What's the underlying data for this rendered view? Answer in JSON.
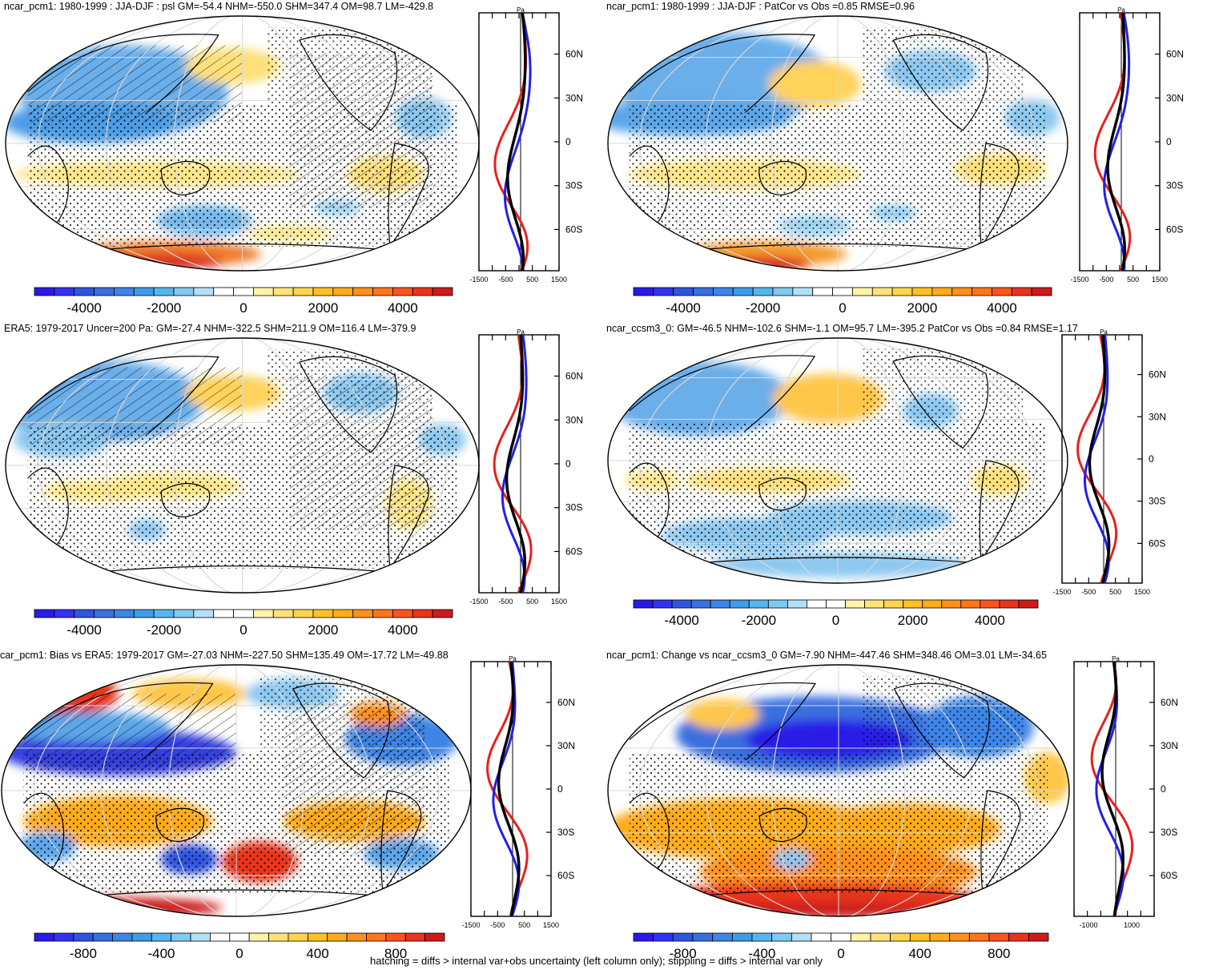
{
  "footer": "hatching = diffs > internal var+obs uncertainty (left column only); stippling = diffs > internal var only",
  "panels": [
    {
      "id": "p1",
      "title": "ncar_pcm1: 1980-1999 : JJA-DJF : psl GM=-54.4 NHM=-550.0 SHM=347.4 OM=98.7 LM=-429.8",
      "colorbar_labels": [
        "-4000",
        "-2000",
        "0",
        "2000",
        "4000"
      ],
      "profile_ticks": [
        "-1500",
        "-500",
        "500",
        "1500"
      ],
      "profile_unit": "Pa",
      "lat_labels": [
        "60N",
        "30N",
        "0",
        "30S",
        "60S"
      ]
    },
    {
      "id": "p2",
      "title": "ncar_pcm1: 1980-1999 : JJA-DJF : PatCor vs Obs =0.85 RMSE=0.96",
      "colorbar_labels": [
        "-4000",
        "-2000",
        "0",
        "2000",
        "4000"
      ],
      "profile_ticks": [
        "-1500",
        "-500",
        "500",
        "1500"
      ],
      "profile_unit": "Pa",
      "lat_labels": [
        "60N",
        "30N",
        "0",
        "30S",
        "60S"
      ]
    },
    {
      "id": "p3",
      "title": "ERA5: 1979-2017 Uncer=200 Pa: GM=-27.4 NHM=-322.5 SHM=211.9 OM=116.4 LM=-379.9",
      "colorbar_labels": [
        "-4000",
        "-2000",
        "0",
        "2000",
        "4000"
      ],
      "profile_ticks": [
        "-1500",
        "-500",
        "500",
        "1500"
      ],
      "profile_unit": "Pa",
      "lat_labels": [
        "60N",
        "30N",
        "0",
        "30S",
        "60S"
      ]
    },
    {
      "id": "p4",
      "title": "ncar_ccsm3_0: GM=-46.5 NHM=-102.6 SHM=-1.1 OM=95.7 LM=-395.2 PatCor vs Obs =0.84 RMSE=1.17",
      "colorbar_labels": [
        "-4000",
        "-2000",
        "0",
        "2000",
        "4000"
      ],
      "profile_ticks": [
        "-1500",
        "-500",
        "500",
        "1500"
      ],
      "profile_unit": "Pa",
      "lat_labels": [
        "60N",
        "30N",
        "0",
        "30S",
        "60S"
      ]
    },
    {
      "id": "p5",
      "title": "car_pcm1: Bias vs ERA5: 1979-2017 GM=-27.03 NHM=-227.50 SHM=135.49 OM=-17.72 LM=-49.88",
      "colorbar_labels": [
        "-800",
        "-400",
        "0",
        "400",
        "800"
      ],
      "profile_ticks": [
        "-1500",
        "-500",
        "500",
        "1500"
      ],
      "profile_unit": "Pa",
      "lat_labels": [
        "60N",
        "30N",
        "0",
        "30S",
        "60S"
      ]
    },
    {
      "id": "p6",
      "title": "ncar_pcm1: Change vs ncar_ccsm3_0 GM=-7.90 NHM=-447.46 SHM=348.46 OM=3.01 LM=-34.65",
      "colorbar_labels": [
        "-800",
        "-400",
        "0",
        "400",
        "800"
      ],
      "profile_ticks": [
        "-1000",
        "1000"
      ],
      "profile_unit": "Pa",
      "lat_labels": [
        "60N",
        "30N",
        "0",
        "30S",
        "60S"
      ]
    }
  ]
}
